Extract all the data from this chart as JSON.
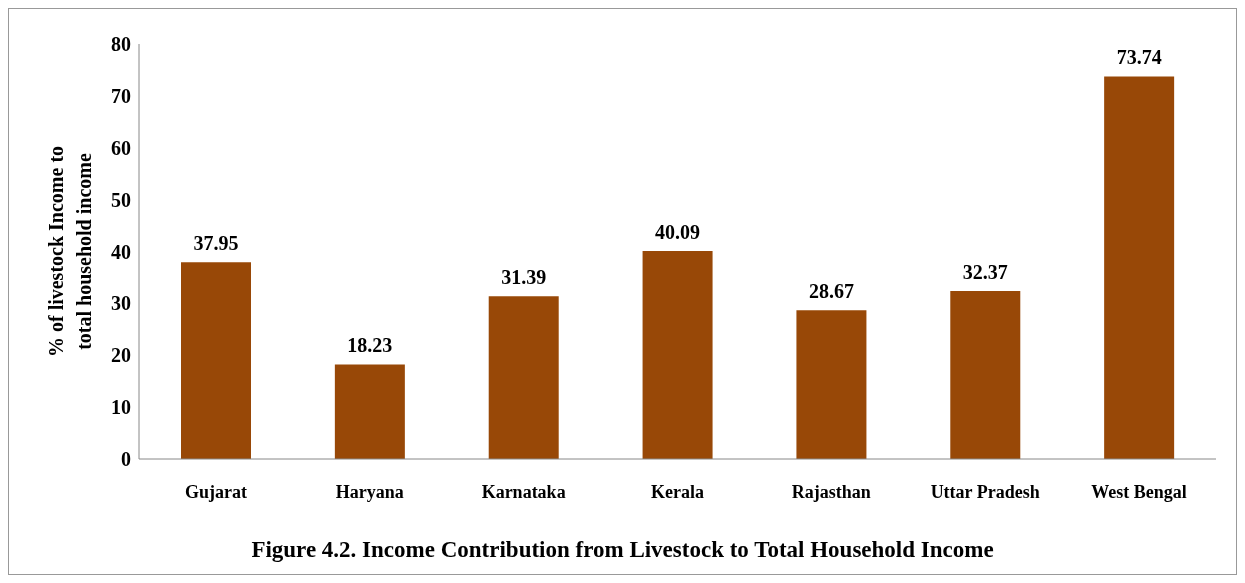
{
  "chart_data": {
    "type": "bar",
    "title": "Figure 4.2. Income Contribution from Livestock to Total Household Income",
    "ylabel": "% of livestock Income to total household income",
    "categories": [
      "Gujarat",
      "Haryana",
      "Karnataka",
      "Kerala",
      "Rajasthan",
      "Uttar Pradesh",
      "West Bengal"
    ],
    "values": [
      37.95,
      18.23,
      31.39,
      40.09,
      28.67,
      32.37,
      73.74
    ],
    "color": "#984807",
    "ylim": [
      0,
      80
    ],
    "yticks": [
      0,
      10,
      20,
      30,
      40,
      50,
      60,
      70,
      80
    ],
    "grid": false,
    "legend": false,
    "data_labels": true
  }
}
